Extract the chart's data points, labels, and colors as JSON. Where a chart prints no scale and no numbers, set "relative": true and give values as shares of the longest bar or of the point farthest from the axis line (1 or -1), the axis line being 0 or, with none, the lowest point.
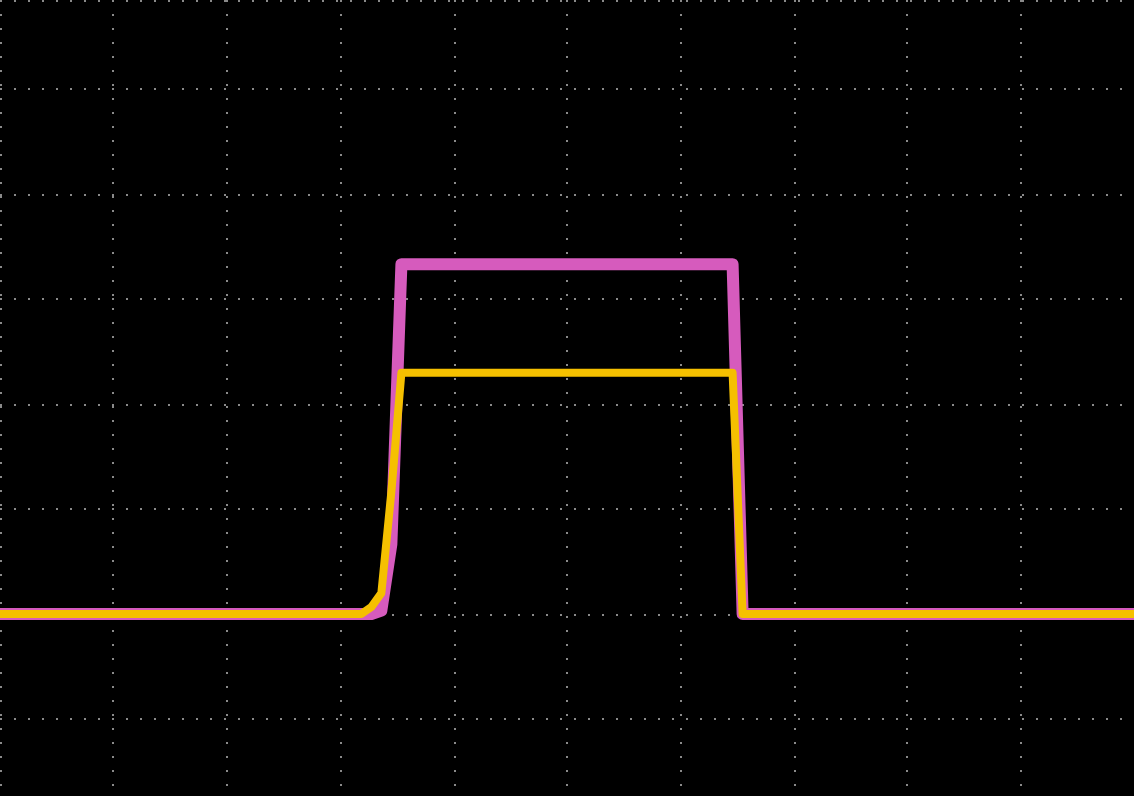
{
  "chart_data": {
    "type": "line",
    "relative": true,
    "grid": true,
    "line_style": "solid",
    "categories": [
      null,
      null,
      null,
      null,
      null,
      null,
      null,
      null,
      null,
      null,
      null,
      null,
      null,
      null,
      null,
      null,
      null,
      null,
      null,
      null,
      null,
      null,
      null,
      null,
      null,
      null,
      null,
      null,
      null,
      null,
      null,
      null,
      null,
      null,
      null,
      null,
      null,
      null,
      null,
      null,
      null,
      null,
      null,
      null,
      null,
      null,
      null,
      null,
      null,
      null,
      null,
      null,
      null,
      null,
      null,
      null,
      null,
      null,
      null,
      null,
      null,
      null,
      null,
      null,
      null,
      null,
      null,
      null,
      null,
      null,
      null,
      null,
      null,
      null,
      null,
      null,
      null,
      null,
      null,
      null,
      null,
      null,
      null,
      null,
      null,
      null,
      null,
      null,
      null,
      null,
      null,
      null,
      null,
      null,
      null,
      null,
      null,
      null,
      null,
      null,
      null,
      null,
      null,
      null,
      null,
      null,
      null,
      null,
      null,
      null,
      null,
      null,
      null,
      null
    ],
    "series": [
      {
        "color": "#d65bbd",
        "values": [
          0,
          0,
          0,
          0,
          0,
          0,
          0,
          0,
          0,
          0,
          0,
          0,
          0,
          0,
          0,
          0,
          0,
          0,
          0,
          0,
          0,
          0,
          0,
          0,
          0,
          0,
          0,
          0,
          0,
          0,
          0,
          0,
          0,
          0,
          0,
          0,
          0,
          0,
          0.01,
          0.2,
          1,
          1,
          1,
          1,
          1,
          1,
          1,
          1,
          1,
          1,
          1,
          1,
          1,
          1,
          1,
          1,
          1,
          1,
          1,
          1,
          1,
          1,
          1,
          1,
          1,
          1,
          1,
          1,
          1,
          1,
          1,
          1,
          1,
          1,
          0,
          0,
          0,
          0,
          0,
          0,
          0,
          0,
          0,
          0,
          0,
          0,
          0,
          0,
          0,
          0,
          0,
          0,
          0,
          0,
          0,
          0,
          0,
          0,
          0,
          0,
          0,
          0,
          0,
          0,
          0,
          0,
          0,
          0,
          0,
          0,
          0,
          0,
          0,
          0
        ]
      },
      {
        "color": "#f5c000",
        "values": [
          0,
          0,
          0,
          0,
          0,
          0,
          0,
          0,
          0,
          0,
          0,
          0,
          0,
          0,
          0,
          0,
          0,
          0,
          0,
          0,
          0,
          0,
          0,
          0,
          0,
          0,
          0,
          0,
          0,
          0,
          0,
          0,
          0,
          0,
          0,
          0,
          0,
          0.02,
          0.06,
          0.35,
          0.69,
          0.69,
          0.69,
          0.69,
          0.69,
          0.69,
          0.69,
          0.69,
          0.69,
          0.69,
          0.69,
          0.69,
          0.69,
          0.69,
          0.69,
          0.69,
          0.69,
          0.69,
          0.69,
          0.69,
          0.69,
          0.69,
          0.69,
          0.69,
          0.69,
          0.69,
          0.69,
          0.69,
          0.69,
          0.69,
          0.69,
          0.69,
          0.69,
          0.69,
          0,
          0,
          0,
          0,
          0,
          0,
          0,
          0,
          0,
          0,
          0,
          0,
          0,
          0,
          0,
          0,
          0,
          0,
          0,
          0,
          0,
          0,
          0,
          0,
          0,
          0,
          0,
          0,
          0,
          0,
          0,
          0,
          0,
          0,
          0,
          0,
          0,
          0,
          0,
          0
        ]
      }
    ]
  }
}
